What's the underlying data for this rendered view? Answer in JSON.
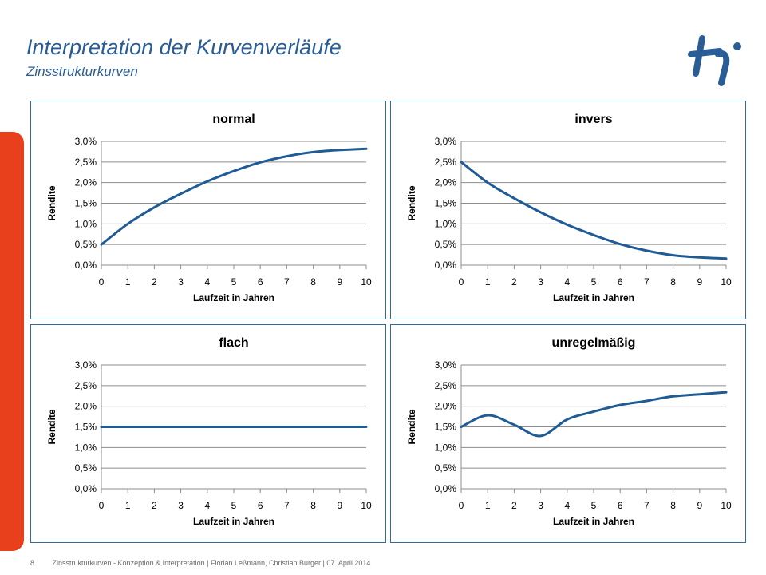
{
  "header": {
    "title": "Interpretation der Kurvenverläufe",
    "subtitle": "Zinsstrukturkurven"
  },
  "footer": {
    "page_number": "8",
    "text": "Zinsstrukturkurven - Konzeption & Interpretation | Florian Leßmann, Christian Burger | 07. April 2014"
  },
  "colors": {
    "series": "#1f5b94",
    "accent": "#e8401c",
    "title": "#2a5d96",
    "border": "#2f6aa0"
  },
  "chart_data": [
    {
      "type": "line",
      "title": "normal",
      "xlabel": "Laufzeit in Jahren",
      "ylabel": "Rendite",
      "xlim": [
        0,
        10
      ],
      "ylim": [
        0,
        0.03
      ],
      "grid": true,
      "xticks": [
        "0",
        "1",
        "2",
        "3",
        "4",
        "5",
        "6",
        "7",
        "8",
        "9",
        "10"
      ],
      "yticks": [
        "0,0%",
        "0,5%",
        "1,0%",
        "1,5%",
        "2,0%",
        "2,5%",
        "3,0%"
      ],
      "x": [
        0,
        1,
        2,
        3,
        4,
        5,
        6,
        7,
        8,
        9,
        10
      ],
      "y": [
        0.005,
        0.01,
        0.014,
        0.0173,
        0.0203,
        0.0228,
        0.0249,
        0.0264,
        0.0274,
        0.0279,
        0.0282
      ]
    },
    {
      "type": "line",
      "title": "invers",
      "xlabel": "Laufzeit in Jahren",
      "ylabel": "Rendite",
      "xlim": [
        0,
        10
      ],
      "ylim": [
        0,
        0.03
      ],
      "grid": true,
      "xticks": [
        "0",
        "1",
        "2",
        "3",
        "4",
        "5",
        "6",
        "7",
        "8",
        "9",
        "10"
      ],
      "yticks": [
        "0,0%",
        "0,5%",
        "1,0%",
        "1,5%",
        "2,0%",
        "2,5%",
        "3,0%"
      ],
      "x": [
        0,
        1,
        2,
        3,
        4,
        5,
        6,
        7,
        8,
        9,
        10
      ],
      "y": [
        0.025,
        0.02,
        0.0162,
        0.0128,
        0.0098,
        0.0073,
        0.0051,
        0.0035,
        0.0024,
        0.0019,
        0.0016
      ]
    },
    {
      "type": "line",
      "title": "flach",
      "xlabel": "Laufzeit in Jahren",
      "ylabel": "Rendite",
      "xlim": [
        0,
        10
      ],
      "ylim": [
        0,
        0.03
      ],
      "grid": true,
      "xticks": [
        "0",
        "1",
        "2",
        "3",
        "4",
        "5",
        "6",
        "7",
        "8",
        "9",
        "10"
      ],
      "yticks": [
        "0,0%",
        "0,5%",
        "1,0%",
        "1,5%",
        "2,0%",
        "2,5%",
        "3,0%"
      ],
      "x": [
        0,
        1,
        2,
        3,
        4,
        5,
        6,
        7,
        8,
        9,
        10
      ],
      "y": [
        0.015,
        0.015,
        0.015,
        0.015,
        0.015,
        0.015,
        0.015,
        0.015,
        0.015,
        0.015,
        0.015
      ]
    },
    {
      "type": "line",
      "title": "unregelmäßig",
      "xlabel": "Laufzeit in Jahren",
      "ylabel": "Rendite",
      "xlim": [
        0,
        10
      ],
      "ylim": [
        0,
        0.03
      ],
      "grid": true,
      "xticks": [
        "0",
        "1",
        "2",
        "3",
        "4",
        "5",
        "6",
        "7",
        "8",
        "9",
        "10"
      ],
      "yticks": [
        "0,0%",
        "0,5%",
        "1,0%",
        "1,5%",
        "2,0%",
        "2,5%",
        "3,0%"
      ],
      "x": [
        0,
        1,
        2,
        3,
        4,
        5,
        6,
        7,
        8,
        9,
        10
      ],
      "y": [
        0.015,
        0.0178,
        0.0155,
        0.0128,
        0.0168,
        0.0187,
        0.0203,
        0.0213,
        0.0224,
        0.0229,
        0.0234
      ]
    }
  ]
}
